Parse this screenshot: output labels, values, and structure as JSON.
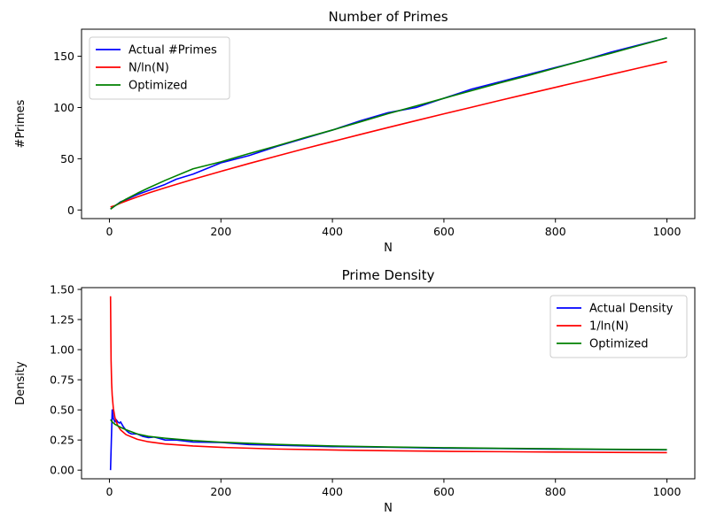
{
  "chart_data": [
    {
      "type": "line",
      "title": "Number of Primes",
      "xlabel": "N",
      "ylabel": "#Primes",
      "xlim": [
        -50,
        1050
      ],
      "ylim": [
        -8.4,
        176.4
      ],
      "xticks": [
        0,
        200,
        400,
        600,
        800,
        1000
      ],
      "yticks": [
        0,
        50,
        100,
        150
      ],
      "xtick_labels": [
        "0",
        "200",
        "400",
        "600",
        "800",
        "1000"
      ],
      "ytick_labels": [
        "0",
        "50",
        "100",
        "150"
      ],
      "grid": false,
      "legend_position": "upper-left",
      "series": [
        {
          "name": "Actual #Primes",
          "color": "#0000ff",
          "x": [
            2,
            10,
            20,
            30,
            50,
            70,
            100,
            120,
            150,
            200,
            250,
            300,
            350,
            400,
            450,
            500,
            550,
            600,
            650,
            700,
            750,
            800,
            850,
            900,
            950,
            1000
          ],
          "y": [
            1,
            4,
            8,
            10,
            15,
            19,
            25,
            30,
            35,
            46,
            53,
            62,
            70,
            78,
            87,
            95,
            100,
            109,
            118,
            125,
            132,
            139,
            146,
            154,
            161,
            168
          ]
        },
        {
          "name": "N/ln(N)",
          "color": "#ff0000",
          "x": [
            2,
            10,
            20,
            30,
            50,
            70,
            100,
            150,
            200,
            250,
            300,
            350,
            400,
            450,
            500,
            550,
            600,
            650,
            700,
            750,
            800,
            850,
            900,
            950,
            1000
          ],
          "y": [
            2.9,
            4.3,
            6.7,
            8.8,
            12.8,
            16.5,
            21.7,
            29.9,
            37.7,
            45.3,
            52.6,
            59.8,
            66.8,
            73.7,
            80.5,
            87.2,
            93.8,
            100.3,
            106.9,
            113.3,
            119.7,
            126.0,
            132.3,
            138.6,
            144.8
          ]
        },
        {
          "name": "Optimized",
          "color": "#008000",
          "x": [
            2,
            10,
            20,
            30,
            50,
            70,
            100,
            150,
            200,
            250,
            300,
            350,
            400,
            450,
            500,
            550,
            600,
            650,
            700,
            750,
            800,
            850,
            900,
            950,
            1000
          ],
          "y": [
            0.8,
            4.1,
            7.5,
            10.6,
            16.3,
            21.5,
            28.9,
            40.2,
            47.0,
            55.0,
            62.5,
            70.5,
            78.0,
            86.0,
            94.0,
            101.5,
            109.0,
            116.5,
            124.0,
            131.0,
            138.5,
            146.0,
            153.0,
            160.5,
            168.0
          ]
        }
      ]
    },
    {
      "type": "line",
      "title": "Prime Density",
      "xlabel": "N",
      "ylabel": "Density",
      "xlim": [
        -50,
        1050
      ],
      "ylim": [
        -0.072,
        1.515
      ],
      "xticks": [
        0,
        200,
        400,
        600,
        800,
        1000
      ],
      "yticks": [
        0,
        0.25,
        0.5,
        0.75,
        1.0,
        1.25,
        1.5
      ],
      "xtick_labels": [
        "0",
        "200",
        "400",
        "600",
        "800",
        "1000"
      ],
      "ytick_labels": [
        "0.00",
        "0.25",
        "0.50",
        "0.75",
        "1.00",
        "1.25",
        "1.50"
      ],
      "grid": false,
      "legend_position": "upper-right",
      "series": [
        {
          "name": "Actual Density",
          "color": "#0000ff",
          "x": [
            2,
            5,
            7,
            10,
            12,
            15,
            18,
            20,
            25,
            30,
            35,
            40,
            50,
            60,
            70,
            80,
            100,
            120,
            150,
            200,
            250,
            300,
            400,
            500,
            600,
            700,
            800,
            900,
            1000
          ],
          "y": [
            0.0,
            0.5,
            0.43,
            0.4,
            0.42,
            0.4,
            0.39,
            0.4,
            0.36,
            0.33,
            0.31,
            0.3,
            0.3,
            0.28,
            0.27,
            0.275,
            0.25,
            0.25,
            0.233,
            0.23,
            0.212,
            0.207,
            0.195,
            0.19,
            0.182,
            0.179,
            0.174,
            0.171,
            0.168
          ]
        },
        {
          "name": "1/ln(N)",
          "color": "#ff0000",
          "x": [
            2,
            3,
            4,
            5,
            7,
            10,
            15,
            20,
            30,
            50,
            70,
            100,
            150,
            200,
            300,
            400,
            500,
            600,
            700,
            800,
            900,
            1000
          ],
          "y": [
            1.443,
            0.91,
            0.721,
            0.621,
            0.514,
            0.434,
            0.369,
            0.334,
            0.294,
            0.256,
            0.235,
            0.217,
            0.2,
            0.189,
            0.175,
            0.167,
            0.161,
            0.156,
            0.153,
            0.15,
            0.147,
            0.145
          ]
        },
        {
          "name": "Optimized",
          "color": "#008000",
          "x": [
            2,
            5,
            10,
            20,
            30,
            50,
            70,
            100,
            150,
            200,
            300,
            400,
            500,
            600,
            700,
            800,
            900,
            1000
          ],
          "y": [
            0.42,
            0.4,
            0.38,
            0.355,
            0.335,
            0.3,
            0.28,
            0.265,
            0.245,
            0.232,
            0.213,
            0.2,
            0.192,
            0.186,
            0.181,
            0.177,
            0.173,
            0.17
          ]
        }
      ]
    }
  ]
}
